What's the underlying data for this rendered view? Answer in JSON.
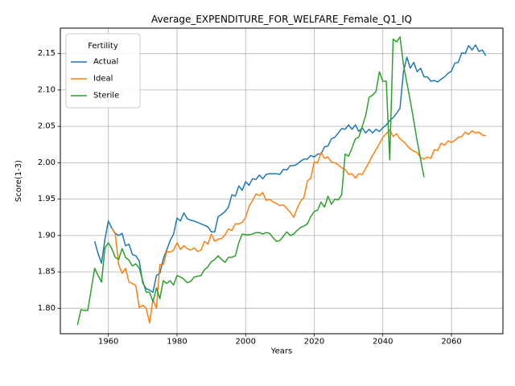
{
  "chart_data": {
    "type": "line",
    "title": "Average_EXPENDITURE_FOR_WELFARE_Female_Q1_IQ",
    "xlabel": "Years",
    "ylabel": "Score(1-3)",
    "xlim": [
      1946,
      2075
    ],
    "ylim": [
      1.765,
      2.185
    ],
    "xticks": [
      1960,
      1980,
      2000,
      2020,
      2040,
      2060
    ],
    "yticks": [
      1.8,
      1.85,
      1.9,
      1.95,
      2.0,
      2.05,
      2.1,
      2.15
    ],
    "grid": true,
    "legend": {
      "title": "Fertility",
      "placement": "top-left"
    },
    "series": [
      {
        "name": "Actual",
        "color": "#1f77b4",
        "x": [
          1956,
          1957,
          1958,
          1959,
          1960,
          1961,
          1962,
          1963,
          1964,
          1965,
          1966,
          1967,
          1968,
          1969,
          1970,
          1971,
          1972,
          1973,
          1974,
          1975,
          1976,
          1977,
          1978,
          1979,
          1980,
          1981,
          1982,
          1983,
          1984,
          1985,
          1986,
          1987,
          1988,
          1989,
          1990,
          1991,
          1992,
          1993,
          1994,
          1995,
          1996,
          1997,
          1998,
          1999,
          2000,
          2001,
          2002,
          2003,
          2004,
          2005,
          2006,
          2007,
          2008,
          2009,
          2010,
          2011,
          2012,
          2013,
          2014,
          2015,
          2016,
          2017,
          2018,
          2019,
          2020,
          2021,
          2022,
          2023,
          2024,
          2025,
          2026,
          2027,
          2028,
          2029,
          2030,
          2031,
          2032,
          2033,
          2034,
          2035,
          2036,
          2037,
          2038,
          2039,
          2040,
          2041,
          2042,
          2043,
          2044,
          2045,
          2046,
          2047,
          2048,
          2049,
          2050,
          2051,
          2052,
          2053,
          2054,
          2055,
          2056,
          2057,
          2058,
          2059,
          2060,
          2061,
          2062,
          2063,
          2064,
          2065,
          2066,
          2067,
          2068,
          2069,
          2070
        ],
        "y": [
          1.892,
          1.875,
          1.862,
          1.895,
          1.92,
          1.91,
          1.903,
          1.9,
          1.903,
          1.886,
          1.888,
          1.874,
          1.872,
          1.865,
          1.835,
          1.827,
          1.825,
          1.822,
          1.845,
          1.848,
          1.868,
          1.88,
          1.893,
          1.902,
          1.924,
          1.92,
          1.931,
          1.923,
          1.921,
          1.92,
          1.918,
          1.916,
          1.914,
          1.912,
          1.905,
          1.905,
          1.926,
          1.929,
          1.933,
          1.939,
          1.956,
          1.954,
          1.968,
          1.962,
          1.974,
          1.969,
          1.978,
          1.977,
          1.983,
          1.978,
          1.984,
          1.985,
          1.985,
          1.985,
          1.984,
          1.991,
          1.99,
          1.996,
          1.996,
          1.998,
          2.002,
          2.005,
          2.005,
          2.01,
          2.008,
          2.012,
          2.012,
          2.022,
          2.023,
          2.033,
          2.035,
          2.041,
          2.047,
          2.046,
          2.052,
          2.046,
          2.052,
          2.043,
          2.048,
          2.041,
          2.046,
          2.041,
          2.046,
          2.043,
          2.048,
          2.052,
          2.058,
          2.062,
          2.068,
          2.075,
          2.125,
          2.145,
          2.13,
          2.138,
          2.125,
          2.13,
          2.118,
          2.118,
          2.112,
          2.113,
          2.111,
          2.115,
          2.118,
          2.123,
          2.126,
          2.137,
          2.138,
          2.151,
          2.15,
          2.161,
          2.155,
          2.162,
          2.153,
          2.155,
          2.147
        ]
      },
      {
        "name": "Ideal",
        "color": "#ff7f0e",
        "x": [
          1961,
          1962,
          1963,
          1964,
          1965,
          1966,
          1967,
          1968,
          1969,
          1970,
          1971,
          1972,
          1973,
          1974,
          1975,
          1976,
          1977,
          1978,
          1979,
          1980,
          1981,
          1982,
          1983,
          1984,
          1985,
          1986,
          1987,
          1988,
          1989,
          1990,
          1991,
          1992,
          1993,
          1994,
          1995,
          1996,
          1997,
          1998,
          1999,
          2000,
          2001,
          2002,
          2003,
          2004,
          2005,
          2006,
          2007,
          2008,
          2009,
          2010,
          2011,
          2012,
          2013,
          2014,
          2015,
          2016,
          2017,
          2018,
          2019,
          2020,
          2021,
          2022,
          2023,
          2024,
          2025,
          2026,
          2027,
          2028,
          2029,
          2030,
          2031,
          2032,
          2033,
          2034,
          2035,
          2036,
          2037,
          2038,
          2039,
          2040,
          2041,
          2042,
          2043,
          2044,
          2045,
          2046,
          2047,
          2048,
          2049,
          2050,
          2051,
          2052,
          2053,
          2054,
          2055,
          2056,
          2057,
          2058,
          2059,
          2060,
          2061,
          2062,
          2063,
          2064,
          2065,
          2066,
          2067,
          2068,
          2069,
          2070
        ],
        "y": [
          1.91,
          1.902,
          1.86,
          1.848,
          1.855,
          1.836,
          1.834,
          1.831,
          1.801,
          1.804,
          1.8,
          1.78,
          1.812,
          1.8,
          1.86,
          1.86,
          1.878,
          1.877,
          1.88,
          1.89,
          1.881,
          1.886,
          1.882,
          1.88,
          1.883,
          1.878,
          1.88,
          1.892,
          1.888,
          1.902,
          1.892,
          1.895,
          1.896,
          1.901,
          1.909,
          1.907,
          1.916,
          1.916,
          1.918,
          1.925,
          1.94,
          1.948,
          1.957,
          1.955,
          1.959,
          1.948,
          1.95,
          1.946,
          1.944,
          1.941,
          1.942,
          1.937,
          1.932,
          1.925,
          1.937,
          1.947,
          1.952,
          1.975,
          1.979,
          2.001,
          2.0,
          2.014,
          2.006,
          2.008,
          2.001,
          2.0,
          1.997,
          1.993,
          1.991,
          1.984,
          1.985,
          1.979,
          1.985,
          1.984,
          1.992,
          2.001,
          2.01,
          2.018,
          2.026,
          2.035,
          2.04,
          2.045,
          2.036,
          2.04,
          2.033,
          2.029,
          2.024,
          2.019,
          2.016,
          2.014,
          2.007,
          2.005,
          2.008,
          2.006,
          2.018,
          2.017,
          2.027,
          2.024,
          2.03,
          2.028,
          2.031,
          2.035,
          2.036,
          2.042,
          2.039,
          2.044,
          2.041,
          2.042,
          2.038,
          2.037
        ]
      },
      {
        "name": "Sterile",
        "color": "#2ca02c",
        "x": [
          1951,
          1952,
          1953,
          1954,
          1955,
          1956,
          1957,
          1958,
          1959,
          1960,
          1961,
          1962,
          1963,
          1964,
          1965,
          1966,
          1967,
          1968,
          1969,
          1970,
          1971,
          1972,
          1973,
          1974,
          1975,
          1976,
          1977,
          1978,
          1979,
          1980,
          1981,
          1982,
          1983,
          1984,
          1985,
          1986,
          1987,
          1988,
          1989,
          1990,
          1991,
          1992,
          1993,
          1994,
          1995,
          1996,
          1997,
          1998,
          1999,
          2000,
          2001,
          2002,
          2003,
          2004,
          2005,
          2006,
          2007,
          2008,
          2009,
          2010,
          2011,
          2012,
          2013,
          2014,
          2015,
          2016,
          2017,
          2018,
          2019,
          2020,
          2021,
          2022,
          2023,
          2024,
          2025,
          2026,
          2027,
          2028,
          2029,
          2030,
          2031,
          2032,
          2033,
          2034,
          2035,
          2036,
          2037,
          2038,
          2039,
          2040,
          2041,
          2042,
          2043,
          2044,
          2045,
          2046,
          2047,
          2048,
          2049,
          2050,
          2051,
          2052
        ],
        "y": [
          1.777,
          1.798,
          1.797,
          1.797,
          1.826,
          1.855,
          1.845,
          1.836,
          1.883,
          1.89,
          1.882,
          1.87,
          1.867,
          1.882,
          1.87,
          1.866,
          1.858,
          1.861,
          1.855,
          1.838,
          1.822,
          1.822,
          1.809,
          1.828,
          1.813,
          1.838,
          1.834,
          1.838,
          1.832,
          1.845,
          1.843,
          1.84,
          1.835,
          1.837,
          1.843,
          1.844,
          1.845,
          1.853,
          1.857,
          1.864,
          1.867,
          1.872,
          1.867,
          1.863,
          1.87,
          1.87,
          1.872,
          1.89,
          1.902,
          1.901,
          1.901,
          1.902,
          1.904,
          1.904,
          1.902,
          1.904,
          1.903,
          1.897,
          1.892,
          1.893,
          1.899,
          1.905,
          1.9,
          1.902,
          1.907,
          1.911,
          1.913,
          1.916,
          1.926,
          1.933,
          1.935,
          1.946,
          1.939,
          1.954,
          1.943,
          1.95,
          1.949,
          1.956,
          2.012,
          2.009,
          2.02,
          2.033,
          2.035,
          2.05,
          2.065,
          2.09,
          2.093,
          2.098,
          2.125,
          2.112,
          2.112,
          2.004,
          2.17,
          2.166,
          2.173,
          2.135,
          2.11,
          2.085,
          2.058,
          2.03,
          2.005,
          1.98
        ]
      }
    ]
  }
}
